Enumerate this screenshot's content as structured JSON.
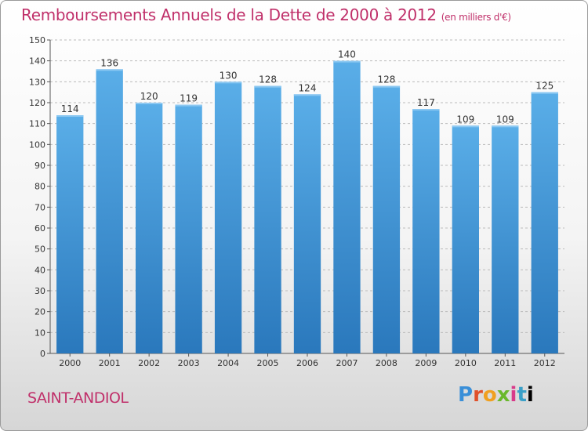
{
  "title": "Remboursements Annuels de la Dette de 2000 à 2012",
  "unit_note": "(en milliers d'€)",
  "town": "SAINT-ANDIOL",
  "brand": "Proxiti",
  "colors": {
    "title": "#c0306a",
    "bar_top": "#5aaee8",
    "bar_bottom": "#2a78bc"
  },
  "chart_data": {
    "type": "bar",
    "title": "Remboursements Annuels de la Dette de 2000 à 2012",
    "xlabel": "",
    "ylabel": "",
    "categories": [
      "2000",
      "2001",
      "2002",
      "2003",
      "2004",
      "2005",
      "2006",
      "2007",
      "2008",
      "2009",
      "2010",
      "2011",
      "2012"
    ],
    "values": [
      114,
      136,
      120,
      119,
      130,
      128,
      124,
      140,
      128,
      117,
      109,
      109,
      125
    ],
    "ylim": [
      0,
      150
    ],
    "yticks": [
      0,
      10,
      20,
      30,
      40,
      50,
      60,
      70,
      80,
      90,
      100,
      110,
      120,
      130,
      140,
      150
    ],
    "grid": true,
    "legend": "none"
  }
}
